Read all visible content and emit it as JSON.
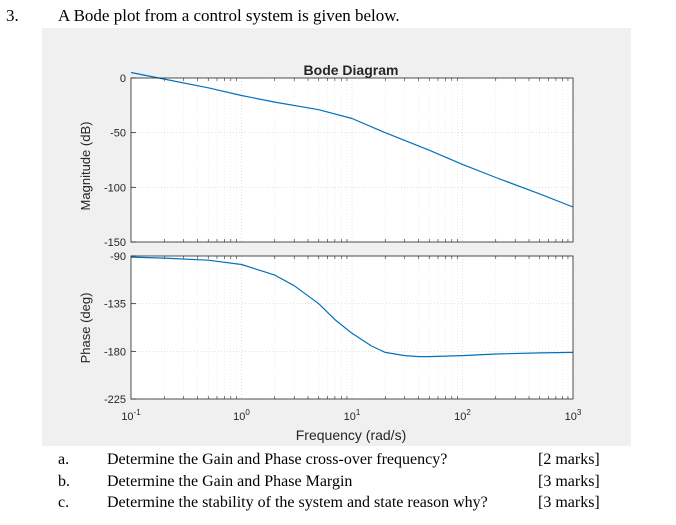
{
  "question": {
    "number": "3.",
    "text": "A Bode plot from a control system is given below."
  },
  "chart_data": {
    "type": "line",
    "title": "Bode Diagram",
    "xlabel": "Frequency  (rad/s)",
    "x_scale": "log",
    "xlim": [
      0.1,
      1000
    ],
    "x_ticks": [
      {
        "base": "10",
        "exp": "-1"
      },
      {
        "base": "10",
        "exp": "0"
      },
      {
        "base": "10",
        "exp": "1"
      },
      {
        "base": "10",
        "exp": "2"
      },
      {
        "base": "10",
        "exp": "3"
      }
    ],
    "grid": true,
    "panels": [
      {
        "name": "magnitude",
        "ylabel": "Magnitude (dB)",
        "ylim": [
          -150,
          0
        ],
        "y_ticks": [
          "0",
          "-50",
          "-100",
          "-150"
        ],
        "y_tick_values": [
          0,
          -50,
          -100,
          -150
        ],
        "series": [
          {
            "color": "#0072bd",
            "x": [
              0.1,
              0.2,
              0.5,
              1,
              2,
              5,
              10,
              20,
              50,
              100,
              200,
              500,
              1000
            ],
            "y": [
              5,
              -1,
              -9,
              -16,
              -22,
              -29,
              -37,
              -50,
              -66,
              -79,
              -91,
              -106,
              -118
            ]
          }
        ]
      },
      {
        "name": "phase",
        "ylabel": "Phase (deg)",
        "ylim": [
          -225,
          -90
        ],
        "y_ticks": [
          "-90",
          "-135",
          "-180",
          "-225"
        ],
        "y_tick_values": [
          -90,
          -135,
          -180,
          -225
        ],
        "series": [
          {
            "color": "#0072bd",
            "x": [
              0.1,
              0.2,
              0.5,
              1,
              2,
              3,
              5,
              7,
              10,
              15,
              20,
              30,
              40,
              50,
              70,
              100,
              200,
              500,
              1000
            ],
            "y": [
              -91,
              -92,
              -94,
              -98,
              -108,
              -118,
              -135,
              -150,
              -163,
              -175,
              -181,
              -184,
              -185,
              -185,
              -184.5,
              -184,
              -182.5,
              -181.5,
              -181
            ]
          }
        ]
      }
    ]
  },
  "items": [
    {
      "label": "a.",
      "text": "Determine the Gain and Phase cross-over frequency?",
      "marks": "[2 marks]"
    },
    {
      "label": "b.",
      "text": "Determine the Gain and Phase Margin",
      "marks": "[3 marks]"
    },
    {
      "label": "c.",
      "text": "Determine the stability of the system and state reason why?",
      "marks": "[3 marks]"
    }
  ]
}
